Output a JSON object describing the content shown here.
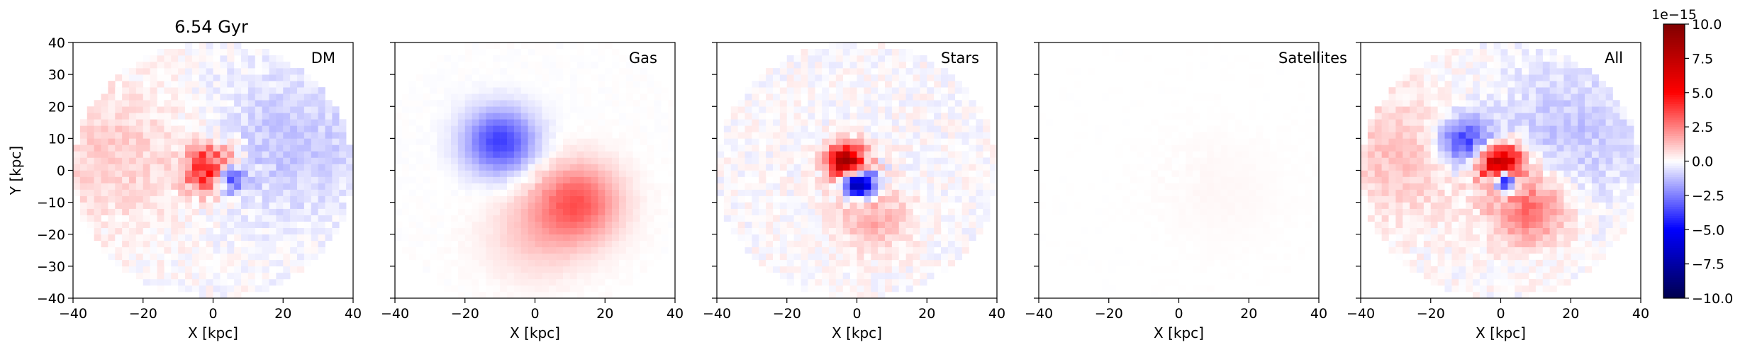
{
  "figure": {
    "title": "6.54 Gyr",
    "colorbar_scale_label": "1e−15"
  },
  "chart_data": {
    "type": "heatmap",
    "panels": [
      {
        "name": "DM",
        "xlabel": "X [kpc]",
        "ylabel": "Y [kpc]",
        "xlim": [
          -40,
          40
        ],
        "ylim": [
          -40,
          40
        ],
        "disk_radius": 40,
        "features": [
          {
            "x": 0,
            "y": 0,
            "r": 7,
            "value": 6.5
          },
          {
            "x": 4,
            "y": -2,
            "r": 5,
            "value": -6.0
          },
          {
            "x": -28,
            "y": 5,
            "r": 22,
            "value": 1.0
          },
          {
            "x": 22,
            "y": 8,
            "r": 24,
            "value": -1.1
          }
        ]
      },
      {
        "name": "Gas",
        "xlabel": "X [kpc]",
        "ylabel": "",
        "xlim": [
          -40,
          40
        ],
        "ylim": [
          -40,
          40
        ],
        "disk_radius": 45,
        "features": [
          {
            "x": -10,
            "y": 9,
            "r": 10,
            "value": -3.8
          },
          {
            "x": 12,
            "y": -10,
            "r": 12,
            "value": 3.2
          },
          {
            "x": 0,
            "y": -20,
            "r": 14,
            "value": 1.0
          }
        ]
      },
      {
        "name": "Stars",
        "xlabel": "X [kpc]",
        "ylabel": "",
        "xlim": [
          -40,
          40
        ],
        "ylim": [
          -40,
          40
        ],
        "disk_radius": 40,
        "features": [
          {
            "x": -3,
            "y": 3,
            "r": 5,
            "value": 8.5
          },
          {
            "x": 1,
            "y": -4,
            "r": 4,
            "value": -9.0
          },
          {
            "x": 5,
            "y": -15,
            "r": 10,
            "value": 1.6
          }
        ]
      },
      {
        "name": "Satellites",
        "xlabel": "X [kpc]",
        "ylabel": "",
        "xlim": [
          -40,
          40
        ],
        "ylim": [
          -40,
          40
        ],
        "disk_radius": 45,
        "features": [
          {
            "x": 12,
            "y": -6,
            "r": 17,
            "value": 0.15
          }
        ]
      },
      {
        "name": "All",
        "xlabel": "X [kpc]",
        "ylabel": "",
        "xlim": [
          -40,
          40
        ],
        "ylim": [
          -40,
          40
        ],
        "disk_radius": 40,
        "features": [
          {
            "x": -10,
            "y": 9,
            "r": 8,
            "value": -4.0
          },
          {
            "x": 0,
            "y": 2,
            "r": 6,
            "value": 8.5
          },
          {
            "x": 1,
            "y": -3,
            "r": 3.5,
            "value": -8.0
          },
          {
            "x": 8,
            "y": -12,
            "r": 11,
            "value": 3.0
          },
          {
            "x": -28,
            "y": 5,
            "r": 20,
            "value": 1.2
          },
          {
            "x": 20,
            "y": 12,
            "r": 22,
            "value": -1.1
          }
        ]
      }
    ],
    "xticks": [
      -40,
      -20,
      0,
      20,
      40
    ],
    "yticks": [
      -40,
      -30,
      -20,
      -10,
      0,
      10,
      20,
      30,
      40
    ],
    "colorbar": {
      "colormap": "seismic",
      "range": [
        -10.0,
        10.0
      ],
      "ticks": [
        10.0,
        7.5,
        5.0,
        2.5,
        0.0,
        -2.5,
        -5.0,
        -7.5,
        -10.0
      ],
      "tick_labels": [
        "10.0",
        "7.5",
        "5.0",
        "2.5",
        "0.0",
        "−2.5",
        "−5.0",
        "−7.5",
        "−10.0"
      ],
      "scale": "1e−15"
    }
  },
  "colors": {
    "negative_extreme": "#00004d",
    "negative": "#0000ff",
    "zero": "#ffffff",
    "positive": "#ff0000",
    "positive_extreme": "#800000"
  }
}
